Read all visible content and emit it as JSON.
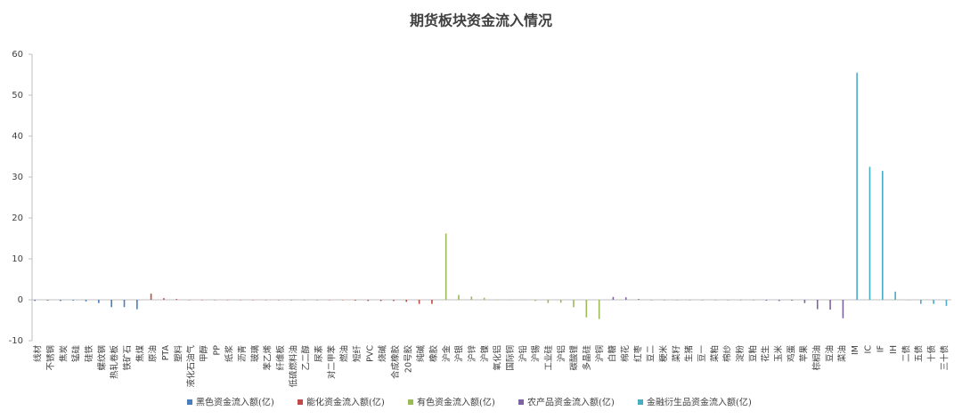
{
  "chart_data": {
    "type": "bar",
    "title": "期货板块资金流入情况",
    "categories": [
      "线材",
      "不锈钢",
      "焦炭",
      "锰硅",
      "硅铁",
      "螺纹钢",
      "热轧卷板",
      "铁矿石",
      "焦煤",
      "原油",
      "PTA",
      "塑料",
      "液化石油气",
      "甲醇",
      "PP",
      "纸浆",
      "沥青",
      "玻璃",
      "苯乙烯",
      "纤维板",
      "低硫燃料油",
      "乙二醇",
      "尿素",
      "对二甲苯",
      "燃油",
      "短纤",
      "PVC",
      "烧碱",
      "合成橡胶",
      "20号胶",
      "纯碱",
      "橡胶",
      "沪金",
      "沪银",
      "沪锌",
      "沪镍",
      "氧化铝",
      "国际铜",
      "沪铅",
      "沪锡",
      "工业硅",
      "沪铝",
      "碳酸锂",
      "多晶硅",
      "沪铜",
      "白糖",
      "棉花",
      "红枣",
      "豆二",
      "粳米",
      "菜籽",
      "生猪",
      "豆一",
      "菜粕",
      "棉纱",
      "淀粉",
      "豆粕",
      "花生",
      "玉米",
      "鸡蛋",
      "苹果",
      "棕榈油",
      "豆油",
      "菜油",
      "IM",
      "IC",
      "IF",
      "IH",
      "二债",
      "五债",
      "十债",
      "三十债"
    ],
    "series": [
      {
        "name": "黑色资金流入额(亿)",
        "color": "#4a7ebb",
        "values": [
          -0.3,
          -0.2,
          -0.3,
          -0.2,
          -0.4,
          -0.8,
          -1.8,
          -1.8,
          -2.3,
          null,
          null,
          null,
          null,
          null,
          null,
          null,
          null,
          null,
          null,
          null,
          null,
          null,
          null,
          null,
          null,
          null,
          null,
          null,
          null,
          null,
          null,
          null,
          null,
          null,
          null,
          null,
          null,
          null,
          null,
          null,
          null,
          null,
          null,
          null,
          null,
          null,
          null,
          null,
          null,
          null,
          null,
          null,
          null,
          null,
          null,
          null,
          null,
          null,
          null,
          null,
          null,
          null,
          null,
          null,
          null,
          null,
          null,
          null,
          null,
          null,
          null,
          null
        ]
      },
      {
        "name": "能化资金流入额(亿)",
        "color": "#be4b48",
        "values": [
          null,
          null,
          null,
          null,
          null,
          null,
          null,
          null,
          null,
          1.5,
          0.4,
          0.2,
          0,
          0,
          0,
          0,
          0,
          0,
          0,
          0,
          0,
          0,
          0,
          0,
          0,
          -0.2,
          -0.3,
          -0.3,
          -0.3,
          -0.5,
          -1.0,
          -1.0,
          null,
          null,
          null,
          null,
          null,
          null,
          null,
          null,
          null,
          null,
          null,
          null,
          null,
          null,
          null,
          null,
          null,
          null,
          null,
          null,
          null,
          null,
          null,
          null,
          null,
          null,
          null,
          null,
          null,
          null,
          null,
          null,
          null,
          null,
          null,
          null,
          null,
          null,
          null,
          null
        ]
      },
      {
        "name": "有色资金流入额(亿)",
        "color": "#9bbb59",
        "values": [
          null,
          null,
          null,
          null,
          null,
          null,
          null,
          null,
          null,
          null,
          null,
          null,
          null,
          null,
          null,
          null,
          null,
          null,
          null,
          null,
          null,
          null,
          null,
          null,
          null,
          null,
          null,
          null,
          null,
          null,
          null,
          null,
          16.2,
          1.2,
          0.8,
          0.5,
          0,
          0,
          0,
          -0.3,
          -0.8,
          -0.7,
          -1.8,
          -4.3,
          -4.7,
          null,
          null,
          null,
          null,
          null,
          null,
          null,
          null,
          null,
          null,
          null,
          null,
          null,
          null,
          null,
          null,
          null,
          null,
          null,
          null,
          null,
          null,
          null,
          null,
          null,
          null,
          null
        ]
      },
      {
        "name": "农产品资金流入额(亿)",
        "color": "#7f63a1",
        "values": [
          null,
          null,
          null,
          null,
          null,
          null,
          null,
          null,
          null,
          null,
          null,
          null,
          null,
          null,
          null,
          null,
          null,
          null,
          null,
          null,
          null,
          null,
          null,
          null,
          null,
          null,
          null,
          null,
          null,
          null,
          null,
          null,
          null,
          null,
          null,
          null,
          null,
          null,
          null,
          null,
          null,
          null,
          null,
          null,
          null,
          0.7,
          0.6,
          0.2,
          0,
          0,
          0,
          0,
          0,
          0,
          0,
          0,
          0,
          -0.2,
          -0.3,
          -0.2,
          -0.8,
          -2.3,
          -2.4,
          -4.5,
          null,
          null,
          null,
          null,
          null,
          null,
          null,
          null
        ]
      },
      {
        "name": "金融衍生品资金流入额(亿)",
        "color": "#4bacc6",
        "values": [
          null,
          null,
          null,
          null,
          null,
          null,
          null,
          null,
          null,
          null,
          null,
          null,
          null,
          null,
          null,
          null,
          null,
          null,
          null,
          null,
          null,
          null,
          null,
          null,
          null,
          null,
          null,
          null,
          null,
          null,
          null,
          null,
          null,
          null,
          null,
          null,
          null,
          null,
          null,
          null,
          null,
          null,
          null,
          null,
          null,
          null,
          null,
          null,
          null,
          null,
          null,
          null,
          null,
          null,
          null,
          null,
          null,
          null,
          null,
          null,
          null,
          null,
          null,
          null,
          55.5,
          32.5,
          31.5,
          2.0,
          0,
          -1.0,
          -1.0,
          -1.5
        ]
      }
    ],
    "ylim": [
      -10,
      60
    ],
    "yticks": [
      -10,
      0,
      10,
      20,
      30,
      40,
      50,
      60
    ],
    "grid": false,
    "legend": "bottom"
  }
}
